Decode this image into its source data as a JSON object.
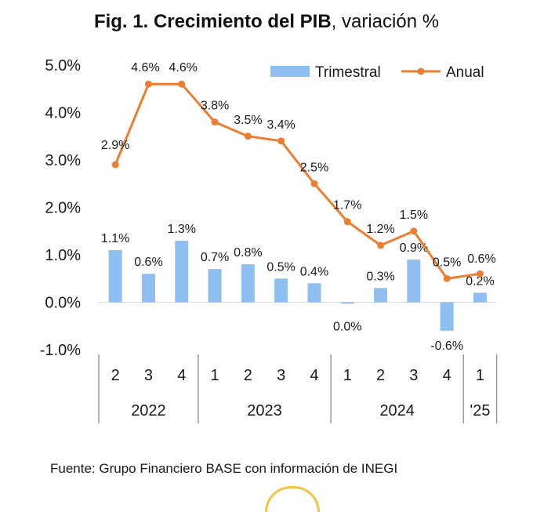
{
  "chart_data": {
    "type": "bar+line",
    "title_bold": "Fig. 1. Crecimiento del PIB",
    "title_rest": ", variación %",
    "categories": [
      "2",
      "3",
      "4",
      "1",
      "2",
      "3",
      "4",
      "1",
      "2",
      "3",
      "4",
      "1"
    ],
    "groups": [
      {
        "label": "2022",
        "count": 3
      },
      {
        "label": "2023",
        "count": 4
      },
      {
        "label": "2024",
        "count": 4
      },
      {
        "label": "'25",
        "count": 1
      }
    ],
    "series": [
      {
        "name": "Trimestral",
        "type": "bar",
        "color": "#8fbff0",
        "values": [
          1.1,
          0.6,
          1.3,
          0.7,
          0.8,
          0.5,
          0.4,
          -0.03,
          0.3,
          0.9,
          -0.6,
          0.2
        ],
        "labels": [
          "1.1%",
          "0.6%",
          "1.3%",
          "0.7%",
          "0.8%",
          "0.5%",
          "0.4%",
          "0.0%",
          "0.3%",
          "0.9%",
          "-0.6%",
          "0.2%"
        ]
      },
      {
        "name": "Anual",
        "type": "line",
        "color": "#ed7d31",
        "values": [
          2.9,
          4.6,
          4.6,
          3.8,
          3.5,
          3.4,
          2.5,
          1.7,
          1.2,
          1.5,
          0.5,
          0.6
        ],
        "labels": [
          "2.9%",
          "4.6%",
          "4.6%",
          "3.8%",
          "3.5%",
          "3.4%",
          "2.5%",
          "1.7%",
          "1.2%",
          "1.5%",
          "0.5%",
          "0.6%"
        ]
      }
    ],
    "ylim": [
      -1.0,
      5.0
    ],
    "yticks": [
      -1.0,
      0.0,
      1.0,
      2.0,
      3.0,
      4.0,
      5.0
    ],
    "ytick_labels": [
      "-1.0%",
      "0.0%",
      "1.0%",
      "2.0%",
      "3.0%",
      "4.0%",
      "5.0%"
    ],
    "legend_position": "top-right"
  },
  "source": "Fuente: Grupo Financiero BASE con información de INEGI"
}
